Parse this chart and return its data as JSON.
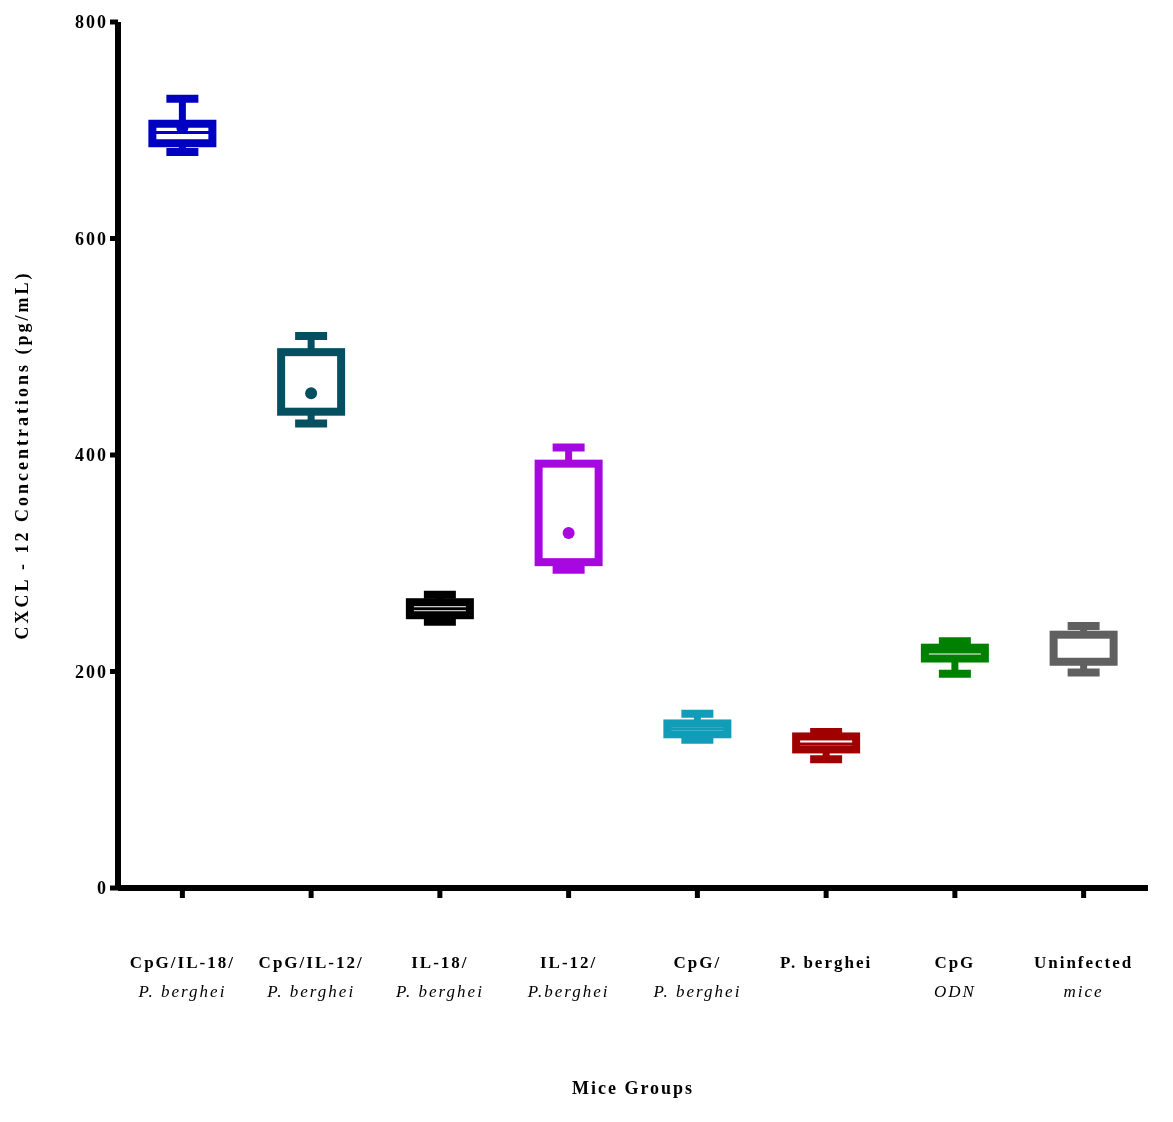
{
  "chart_data": {
    "type": "box",
    "xlabel": "Mice Groups",
    "ylabel": "CXCL - 12 Concentrations (pg/mL)",
    "categories": [
      "CpG/IL-18/\nP. berghei",
      "CpG/IL-12/\nP. berghei",
      "IL-18/\nP. berghei",
      "IL-12/\nP.berghei",
      "CpG/\nP. berghei",
      "P. berghei",
      "CpG\nODN",
      "Uninfected\nmice"
    ],
    "colors": [
      "#0000c0",
      "#044f60",
      "#000000",
      "#a808e0",
      "#119cb8",
      "#a00000",
      "#008000",
      "#606060"
    ],
    "boxes": [
      {
        "low": 680,
        "q1": 688,
        "median": 698,
        "q3": 706,
        "high": 729,
        "mean": 702
      },
      {
        "low": 429,
        "q1": 440,
        "median": 442,
        "q3": 495,
        "high": 510,
        "mean": 457
      },
      {
        "low": 246,
        "q1": 252,
        "median": 258,
        "q3": 264,
        "high": 271
      },
      {
        "low": 294,
        "q1": 301,
        "median": 302,
        "q3": 392,
        "high": 407,
        "mean": 328
      },
      {
        "low": 137,
        "q1": 142,
        "median": 147,
        "q3": 152,
        "high": 161
      },
      {
        "low": 119,
        "q1": 128,
        "median": 133,
        "q3": 140,
        "high": 144
      },
      {
        "low": 198,
        "q1": 212,
        "median": 218,
        "q3": 222,
        "high": 228
      },
      {
        "low": 199,
        "q1": 209,
        "median": 211,
        "q3": 234,
        "high": 242
      }
    ],
    "ylim": [
      0,
      800
    ],
    "yticks": [
      0,
      200,
      400,
      600,
      800
    ],
    "grid": false,
    "legend": false
  }
}
